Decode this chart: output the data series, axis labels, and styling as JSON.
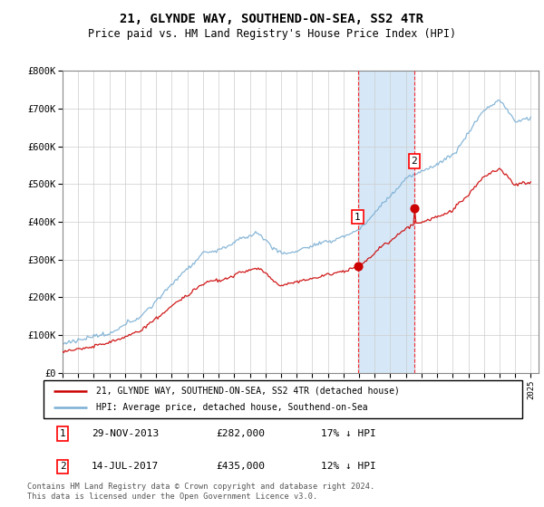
{
  "title": "21, GLYNDE WAY, SOUTHEND-ON-SEA, SS2 4TR",
  "subtitle": "Price paid vs. HM Land Registry's House Price Index (HPI)",
  "ylim": [
    0,
    800000
  ],
  "yticks": [
    0,
    100000,
    200000,
    300000,
    400000,
    500000,
    600000,
    700000,
    800000
  ],
  "ytick_labels": [
    "£0",
    "£100K",
    "£200K",
    "£300K",
    "£400K",
    "£500K",
    "£600K",
    "£700K",
    "£800K"
  ],
  "hpi_color": "#7bafd4",
  "price_color": "#cc0000",
  "highlight_bg": "#d6e8f7",
  "marker1_year": 2013.91,
  "marker1_price": 282000,
  "marker2_year": 2017.54,
  "marker2_price": 435000,
  "legend_label_price": "21, GLYNDE WAY, SOUTHEND-ON-SEA, SS2 4TR (detached house)",
  "legend_label_hpi": "HPI: Average price, detached house, Southend-on-Sea",
  "table_row1": [
    "1",
    "29-NOV-2013",
    "£282,000",
    "17% ↓ HPI"
  ],
  "table_row2": [
    "2",
    "14-JUL-2017",
    "£435,000",
    "12% ↓ HPI"
  ],
  "footer": "Contains HM Land Registry data © Crown copyright and database right 2024.\nThis data is licensed under the Open Government Licence v3.0.",
  "title_fontsize": 10,
  "subtitle_fontsize": 8.5,
  "axis_fontsize": 7.5,
  "xlim_start": 1995,
  "xlim_end": 2025.5
}
